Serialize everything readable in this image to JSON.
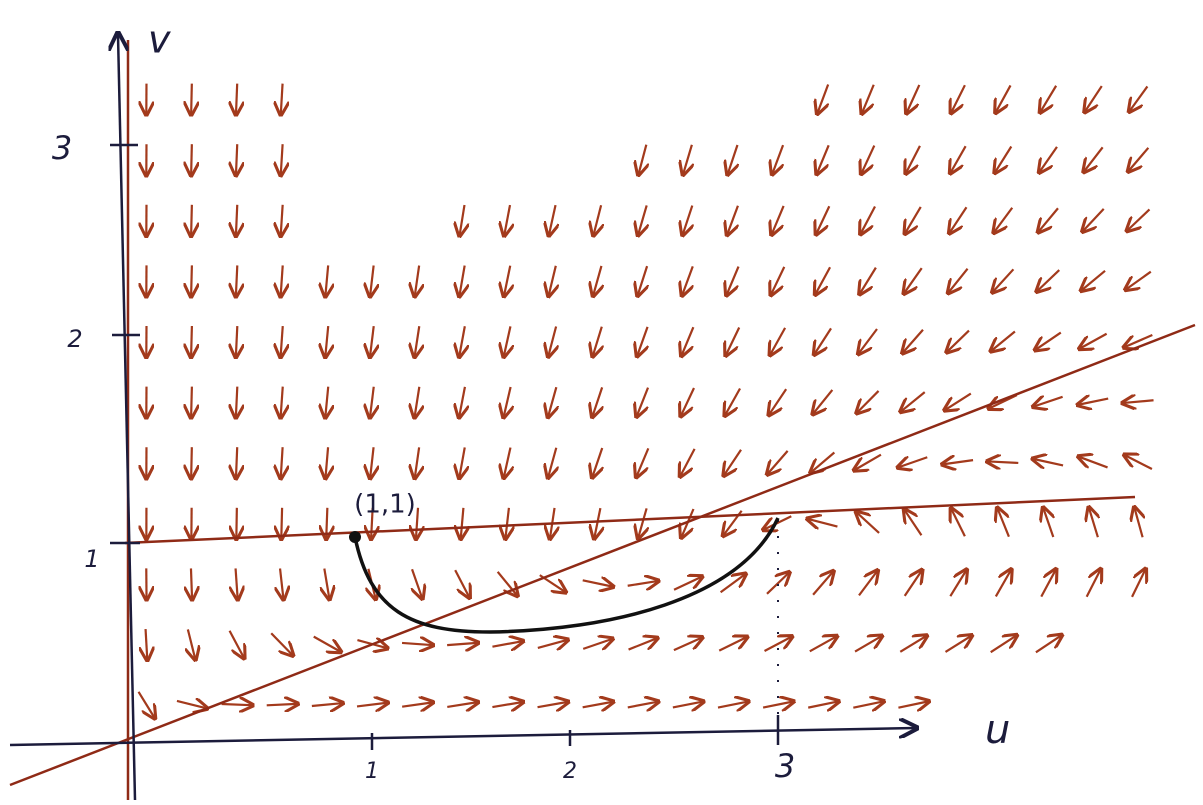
{
  "axes": {
    "x_label": "u",
    "y_label": "v",
    "x_ticks": [
      "1",
      "2",
      "3"
    ],
    "y_ticks": [
      "1",
      "2",
      "3"
    ]
  },
  "point": {
    "label": "(1,1)"
  }
}
